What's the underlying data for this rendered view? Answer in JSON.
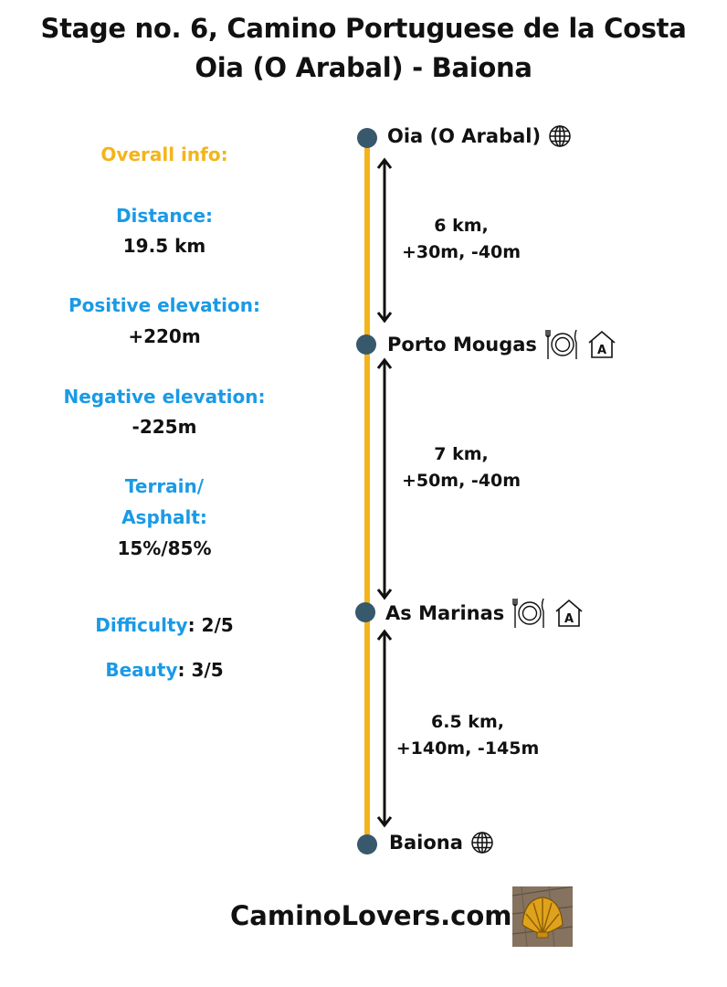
{
  "title": {
    "line1": "Stage no. 6, Camino Portuguese de la Costa",
    "line2": "Oia (O Arabal) - Baiona"
  },
  "info": {
    "heading": "Overall info:",
    "distance_label": "Distance:",
    "distance_value": "19.5 km",
    "pos_elev_label": "Positive elevation:",
    "pos_elev_value": "+220m",
    "neg_elev_label": "Negative elevation:",
    "neg_elev_value": "-225m",
    "terrain_label_1": "Terrain/",
    "terrain_label_2": "Asphalt:",
    "terrain_value": "15%/85%",
    "difficulty_label": "Difficulty",
    "difficulty_value": ": 2/5",
    "beauty_label": "Beauty",
    "beauty_value": ": 3/5"
  },
  "stops": [
    {
      "name": "Oia (O Arabal)",
      "icons": [
        "globe-icon"
      ]
    },
    {
      "name": "Porto Mougas",
      "icons": [
        "restaurant-icon",
        "hostel-icon"
      ]
    },
    {
      "name": "As Marinas",
      "icons": [
        "restaurant-icon",
        "hostel-icon"
      ]
    },
    {
      "name": "Baiona",
      "icons": [
        "globe-icon"
      ]
    }
  ],
  "segments": [
    {
      "distance": "6 km,",
      "elevation": "+30m, -40m"
    },
    {
      "distance": "7 km,",
      "elevation": "+50m, -40m"
    },
    {
      "distance": "6.5 km,",
      "elevation": "+140m, -145m"
    }
  ],
  "footer": {
    "site": "CaminoLovers.com",
    "image": "scallop-shell-photo"
  },
  "colors": {
    "route_line": "#f4b41a",
    "stop_dot": "#38586b",
    "label_blue": "#1a9ae6",
    "heading_orange": "#f4b41a",
    "text": "#111111"
  }
}
